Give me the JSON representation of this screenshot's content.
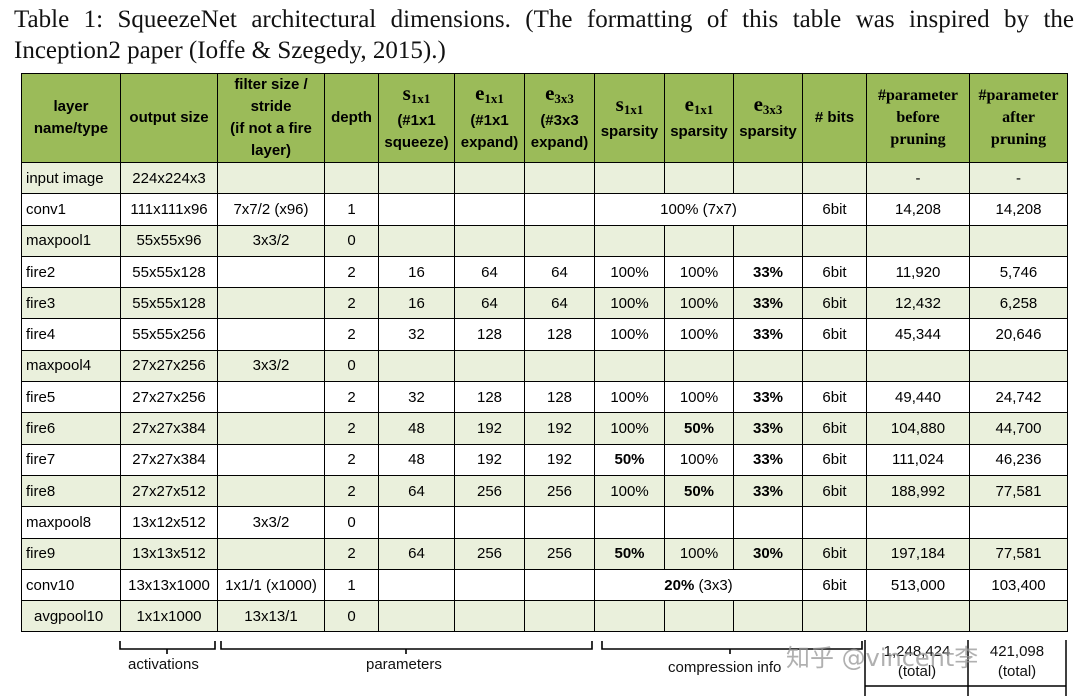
{
  "caption": "Table 1: SqueezeNet architectural dimensions. (The formatting of this table was inspired by the Inception2 paper (Ioffe & Szegedy, 2015).)",
  "headers": {
    "layer_a": "layer",
    "layer_b": "name/type",
    "output": "output size",
    "filter_a": "filter size /",
    "filter_b": "stride",
    "filter_c": "(if not a fire",
    "filter_d": "layer)",
    "depth": "depth",
    "s1_sym": "s",
    "s1_sub": "1x1",
    "s1_a": "(#1x1",
    "s1_b": "squeeze)",
    "e1_sym": "e",
    "e1_sub": "1x1",
    "e1_a": "(#1x1",
    "e1_b": "expand)",
    "e3_sym": "e",
    "e3_sub": "3x3",
    "e3_a": "(#3x3",
    "e3_b": "expand)",
    "ss_sym": "s",
    "ss_sub": "1x1",
    "ss_b": "sparsity",
    "es_sym": "e",
    "es_sub": "1x1",
    "es_b": "sparsity",
    "e3s_sym": "e",
    "e3s_sub": "3x3",
    "e3s_b": "sparsity",
    "bits": "# bits",
    "pb_a": "#parameter",
    "pb_b": "before",
    "pb_c": "pruning",
    "pa_a": "#parameter",
    "pa_b": "after",
    "pa_c": "pruning"
  },
  "rows": {
    "input": [
      "input image",
      "224x224x3",
      "",
      "",
      "",
      "",
      "",
      "",
      "",
      "",
      "",
      "-",
      "-"
    ],
    "conv1": [
      "conv1",
      "111x111x96",
      "7x7/2 (x96)",
      "1",
      "",
      "",
      "",
      "100% (7x7)",
      "6bit",
      "14,208",
      "14,208"
    ],
    "maxpool1": [
      "maxpool1",
      "55x55x96",
      "3x3/2",
      "0",
      "",
      "",
      "",
      "",
      "",
      "",
      "",
      "",
      ""
    ],
    "fire2": [
      "fire2",
      "55x55x128",
      "",
      "2",
      "16",
      "64",
      "64",
      "100%",
      "100%",
      "33%",
      "6bit",
      "11,920",
      "5,746"
    ],
    "fire3": [
      "fire3",
      "55x55x128",
      "",
      "2",
      "16",
      "64",
      "64",
      "100%",
      "100%",
      "33%",
      "6bit",
      "12,432",
      "6,258"
    ],
    "fire4": [
      "fire4",
      "55x55x256",
      "",
      "2",
      "32",
      "128",
      "128",
      "100%",
      "100%",
      "33%",
      "6bit",
      "45,344",
      "20,646"
    ],
    "maxpool4": [
      "maxpool4",
      "27x27x256",
      "3x3/2",
      "0",
      "",
      "",
      "",
      "",
      "",
      "",
      "",
      "",
      ""
    ],
    "fire5": [
      "fire5",
      "27x27x256",
      "",
      "2",
      "32",
      "128",
      "128",
      "100%",
      "100%",
      "33%",
      "6bit",
      "49,440",
      "24,742"
    ],
    "fire6": [
      "fire6",
      "27x27x384",
      "",
      "2",
      "48",
      "192",
      "192",
      "100%",
      "50%",
      "33%",
      "6bit",
      "104,880",
      "44,700"
    ],
    "fire7": [
      "fire7",
      "27x27x384",
      "",
      "2",
      "48",
      "192",
      "192",
      "50%",
      "100%",
      "33%",
      "6bit",
      "111,024",
      "46,236"
    ],
    "fire8": [
      "fire8",
      "27x27x512",
      "",
      "2",
      "64",
      "256",
      "256",
      "100%",
      "50%",
      "33%",
      "6bit",
      "188,992",
      "77,581"
    ],
    "maxpool8": [
      "maxpool8",
      "13x12x512",
      "3x3/2",
      "0",
      "",
      "",
      "",
      "",
      "",
      "",
      "",
      "",
      ""
    ],
    "fire9": [
      "fire9",
      "13x13x512",
      "",
      "2",
      "64",
      "256",
      "256",
      "50%",
      "100%",
      "30%",
      "6bit",
      "197,184",
      "77,581"
    ],
    "conv10": [
      "conv10",
      "13x13x1000",
      "1x1/1 (x1000)",
      "1",
      "",
      "",
      "",
      "20%",
      "(3x3)",
      "6bit",
      "513,000",
      "103,400"
    ],
    "avgpool10": [
      "avgpool10",
      "1x1x1000",
      "13x13/1",
      "0",
      "",
      "",
      "",
      "",
      "",
      "",
      "",
      "",
      ""
    ]
  },
  "brackets": {
    "activations": "activations",
    "parameters": "parameters",
    "compression": "compression info"
  },
  "totals": {
    "before_value": "1,248,424",
    "before_label": "(total)",
    "after_value": "421,098",
    "after_label": "(total)"
  },
  "watermark": "知乎 @vincent李"
}
